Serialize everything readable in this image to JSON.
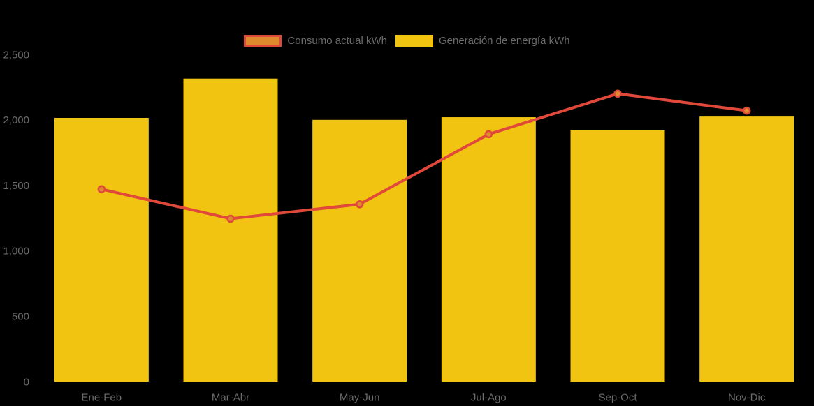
{
  "chart_data": {
    "type": "bar+line",
    "categories": [
      "Ene-Feb",
      "Mar-Abr",
      "May-Jun",
      "Jul-Ago",
      "Sep-Oct",
      "Nov-Dic"
    ],
    "series": [
      {
        "name": "Consumo actual kWh",
        "type": "line",
        "values": [
          1470,
          1245,
          1355,
          1890,
          2200,
          2070
        ],
        "line_color": "#E0493A",
        "marker_color": "#DF8A2D"
      },
      {
        "name": "Generación de energía kWh",
        "type": "bar",
        "values": [
          2015,
          2315,
          2000,
          2020,
          1920,
          2025
        ],
        "bar_color": "#F0C411"
      }
    ],
    "yticks": [
      {
        "value": 0,
        "label": "0"
      },
      {
        "value": 500,
        "label": "500"
      },
      {
        "value": 1000,
        "label": "1,000"
      },
      {
        "value": 1500,
        "label": "1,500"
      },
      {
        "value": 2000,
        "label": "2,000"
      },
      {
        "value": 2500,
        "label": "2,500"
      }
    ],
    "ylim": [
      0,
      2500
    ],
    "title": "",
    "xlabel": "",
    "ylabel": "",
    "grid": false,
    "legend_position": "top-center",
    "background_color": "#000000",
    "axis_text_color": "#6B6B6B"
  }
}
